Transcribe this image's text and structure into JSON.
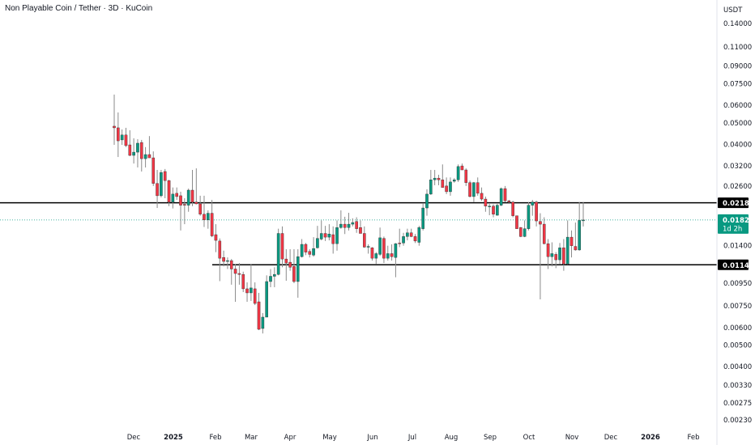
{
  "header": {
    "title": "Non Playable Coin / Tether · 3D · KuCoin"
  },
  "price_axis": {
    "currency": "USDT"
  },
  "chart_data": {
    "type": "candlestick",
    "title": "Non Playable Coin / Tether · 3D · KuCoin",
    "interval": "3D",
    "y_scale": "log",
    "ylim": [
      0.0023,
      0.14
    ],
    "grid": false,
    "y_ticks": [
      "0.14000",
      "0.11000",
      "0.09000",
      "0.07500",
      "0.06000",
      "0.05000",
      "0.04000",
      "0.03200",
      "0.02600",
      "0.01400",
      "0.00950",
      "0.00750",
      "0.00600",
      "0.00500",
      "0.00400",
      "0.00330",
      "0.00275",
      "0.00230"
    ],
    "x_ticks": [
      "Dec",
      "2025",
      "Feb",
      "Mar",
      "Apr",
      "May",
      "Jun",
      "Jul",
      "Aug",
      "Sep",
      "Oct",
      "Nov",
      "Dec",
      "2026",
      "Feb"
    ],
    "colors": {
      "up": "#089981",
      "down": "#f23645",
      "wick": "#8a8a8a",
      "level_line": "#000000",
      "last_price": "#089981"
    },
    "horizontal_levels": [
      {
        "price": 0.02184,
        "label": "0.02184"
      },
      {
        "price": 0.01149,
        "label": "0.01149"
      }
    ],
    "last_price": {
      "price": 0.01828,
      "label": "0.01828",
      "countdown": "1d 2h"
    },
    "ohlc": [
      [
        0.0483,
        0.067,
        0.0398,
        0.0475
      ],
      [
        0.0475,
        0.0557,
        0.0351,
        0.0415
      ],
      [
        0.0419,
        0.0467,
        0.0398,
        0.0441
      ],
      [
        0.0441,
        0.0475,
        0.0389,
        0.0395
      ],
      [
        0.0398,
        0.0463,
        0.0354,
        0.0357
      ],
      [
        0.0357,
        0.0426,
        0.0328,
        0.0369
      ],
      [
        0.0369,
        0.0422,
        0.0315,
        0.0405
      ],
      [
        0.0408,
        0.0419,
        0.0302,
        0.0345
      ],
      [
        0.0345,
        0.0389,
        0.0315,
        0.036
      ],
      [
        0.036,
        0.0436,
        0.0348,
        0.0348
      ],
      [
        0.0348,
        0.0372,
        0.026,
        0.0267
      ],
      [
        0.0267,
        0.0307,
        0.0207,
        0.0235
      ],
      [
        0.0235,
        0.0307,
        0.0231,
        0.0299
      ],
      [
        0.0302,
        0.031,
        0.0229,
        0.0275
      ],
      [
        0.0275,
        0.0277,
        0.0211,
        0.022
      ],
      [
        0.022,
        0.0256,
        0.0206,
        0.0239
      ],
      [
        0.0241,
        0.0256,
        0.0225,
        0.0233
      ],
      [
        0.0235,
        0.0245,
        0.0164,
        0.0213
      ],
      [
        0.0215,
        0.0229,
        0.0175,
        0.0213
      ],
      [
        0.0213,
        0.0253,
        0.0199,
        0.0249
      ],
      [
        0.0249,
        0.0307,
        0.0211,
        0.022
      ],
      [
        0.022,
        0.0312,
        0.0215,
        0.0216
      ],
      [
        0.0216,
        0.0235,
        0.0191,
        0.0194
      ],
      [
        0.0194,
        0.0235,
        0.017,
        0.0183
      ],
      [
        0.0183,
        0.0202,
        0.0167,
        0.0196
      ],
      [
        0.0196,
        0.0225,
        0.0153,
        0.0155
      ],
      [
        0.0157,
        0.0175,
        0.0131,
        0.0148
      ],
      [
        0.0147,
        0.0151,
        0.0097,
        0.0123
      ],
      [
        0.0124,
        0.0133,
        0.0113,
        0.0119
      ],
      [
        0.012,
        0.0124,
        0.011,
        0.012
      ],
      [
        0.012,
        0.0122,
        0.00935,
        0.011
      ],
      [
        0.011,
        0.0116,
        0.00783,
        0.0105
      ],
      [
        0.0105,
        0.0117,
        0.00935,
        0.0104
      ],
      [
        0.0104,
        0.0107,
        0.00866,
        0.00896
      ],
      [
        0.00896,
        0.00958,
        0.00783,
        0.00859
      ],
      [
        0.00859,
        0.0116,
        0.0079,
        0.00904
      ],
      [
        0.00896,
        0.00958,
        0.00757,
        0.0077
      ],
      [
        0.00783,
        0.00859,
        0.00584,
        0.00589
      ],
      [
        0.00594,
        0.00697,
        0.00564,
        0.00668
      ],
      [
        0.00668,
        0.0103,
        0.00668,
        0.00966
      ],
      [
        0.00966,
        0.011,
        0.00911,
        0.0102
      ],
      [
        0.0102,
        0.0112,
        0.00911,
        0.0104
      ],
      [
        0.0104,
        0.0167,
        0.0103,
        0.0159
      ],
      [
        0.0159,
        0.0171,
        0.0112,
        0.0122
      ],
      [
        0.0122,
        0.0135,
        0.00974,
        0.0117
      ],
      [
        0.0118,
        0.0135,
        0.0108,
        0.0112
      ],
      [
        0.0113,
        0.0135,
        0.0095,
        0.00966
      ],
      [
        0.00966,
        0.0135,
        0.00817,
        0.0125
      ],
      [
        0.0125,
        0.015,
        0.0124,
        0.0142
      ],
      [
        0.0142,
        0.0144,
        0.0127,
        0.0131
      ],
      [
        0.0132,
        0.0135,
        0.0124,
        0.0128
      ],
      [
        0.0127,
        0.0153,
        0.0125,
        0.0136
      ],
      [
        0.0137,
        0.0172,
        0.0136,
        0.0151
      ],
      [
        0.015,
        0.0182,
        0.0148,
        0.0159
      ],
      [
        0.0159,
        0.0172,
        0.0147,
        0.0153
      ],
      [
        0.0153,
        0.0175,
        0.0148,
        0.0158
      ],
      [
        0.0157,
        0.0171,
        0.0129,
        0.0143
      ],
      [
        0.0143,
        0.0182,
        0.0133,
        0.0169
      ],
      [
        0.0169,
        0.0202,
        0.0167,
        0.0175
      ],
      [
        0.0175,
        0.0189,
        0.0158,
        0.0169
      ],
      [
        0.0169,
        0.0197,
        0.0164,
        0.0175
      ],
      [
        0.0175,
        0.0186,
        0.0171,
        0.0178
      ],
      [
        0.018,
        0.0188,
        0.016,
        0.0167
      ],
      [
        0.0169,
        0.0182,
        0.0159,
        0.0159
      ],
      [
        0.0159,
        0.0171,
        0.0137,
        0.0138
      ],
      [
        0.0139,
        0.0142,
        0.0129,
        0.0139
      ],
      [
        0.0137,
        0.0138,
        0.012,
        0.0123
      ],
      [
        0.0123,
        0.0131,
        0.0116,
        0.0129
      ],
      [
        0.0128,
        0.0169,
        0.0126,
        0.0152
      ],
      [
        0.0151,
        0.0154,
        0.0117,
        0.0123
      ],
      [
        0.0123,
        0.014,
        0.012,
        0.0129
      ],
      [
        0.0129,
        0.0142,
        0.012,
        0.0125
      ],
      [
        0.0124,
        0.0144,
        0.0101,
        0.0143
      ],
      [
        0.0144,
        0.0167,
        0.0138,
        0.0143
      ],
      [
        0.0144,
        0.016,
        0.014,
        0.0154
      ],
      [
        0.0154,
        0.0167,
        0.0148,
        0.016
      ],
      [
        0.016,
        0.0167,
        0.0153,
        0.0154
      ],
      [
        0.0154,
        0.0158,
        0.0144,
        0.0147
      ],
      [
        0.0145,
        0.0172,
        0.014,
        0.0169
      ],
      [
        0.0167,
        0.0218,
        0.0164,
        0.0207
      ],
      [
        0.0207,
        0.0251,
        0.0191,
        0.0239
      ],
      [
        0.0239,
        0.0307,
        0.0237,
        0.0277
      ],
      [
        0.0277,
        0.0307,
        0.0262,
        0.0282
      ],
      [
        0.0282,
        0.0292,
        0.0262,
        0.0277
      ],
      [
        0.0277,
        0.0325,
        0.0256,
        0.0256
      ],
      [
        0.026,
        0.0284,
        0.0239,
        0.0245
      ],
      [
        0.0245,
        0.0284,
        0.0235,
        0.0271
      ],
      [
        0.0273,
        0.0282,
        0.0269,
        0.0277
      ],
      [
        0.0277,
        0.0325,
        0.0271,
        0.0318
      ],
      [
        0.032,
        0.0328,
        0.0307,
        0.0307
      ],
      [
        0.0307,
        0.0312,
        0.026,
        0.0269
      ],
      [
        0.0269,
        0.0275,
        0.0231,
        0.0233
      ],
      [
        0.0233,
        0.0271,
        0.022,
        0.0269
      ],
      [
        0.0269,
        0.0284,
        0.0235,
        0.0241
      ],
      [
        0.0241,
        0.0256,
        0.0223,
        0.0227
      ],
      [
        0.0227,
        0.0233,
        0.0199,
        0.0211
      ],
      [
        0.0211,
        0.0216,
        0.0192,
        0.0211
      ],
      [
        0.0211,
        0.0215,
        0.0188,
        0.0194
      ],
      [
        0.0192,
        0.0216,
        0.0191,
        0.0213
      ],
      [
        0.0213,
        0.0256,
        0.0211,
        0.0253
      ],
      [
        0.0253,
        0.026,
        0.022,
        0.0223
      ],
      [
        0.0223,
        0.0225,
        0.0216,
        0.022
      ],
      [
        0.022,
        0.0223,
        0.0188,
        0.0191
      ],
      [
        0.0191,
        0.0191,
        0.0167,
        0.0167
      ],
      [
        0.0169,
        0.017,
        0.0153,
        0.0154
      ],
      [
        0.0154,
        0.0182,
        0.0153,
        0.0167
      ],
      [
        0.0167,
        0.022,
        0.0164,
        0.0213
      ],
      [
        0.0213,
        0.0225,
        0.0191,
        0.022
      ],
      [
        0.022,
        0.0223,
        0.0171,
        0.0181
      ],
      [
        0.018,
        0.0196,
        0.00803,
        0.0175
      ],
      [
        0.0175,
        0.0188,
        0.0142,
        0.0143
      ],
      [
        0.0143,
        0.015,
        0.011,
        0.0125
      ],
      [
        0.0125,
        0.0145,
        0.0113,
        0.0129
      ],
      [
        0.0128,
        0.0131,
        0.0111,
        0.0121
      ],
      [
        0.0121,
        0.0144,
        0.0116,
        0.0137
      ],
      [
        0.0137,
        0.015,
        0.0108,
        0.0116
      ],
      [
        0.0116,
        0.0182,
        0.0115,
        0.0153
      ],
      [
        0.0153,
        0.0164,
        0.0124,
        0.014
      ],
      [
        0.0139,
        0.0178,
        0.0133,
        0.0134
      ],
      [
        0.0134,
        0.022,
        0.0133,
        0.0182
      ],
      [
        0.0182,
        0.022,
        0.0171,
        0.01828
      ]
    ]
  }
}
